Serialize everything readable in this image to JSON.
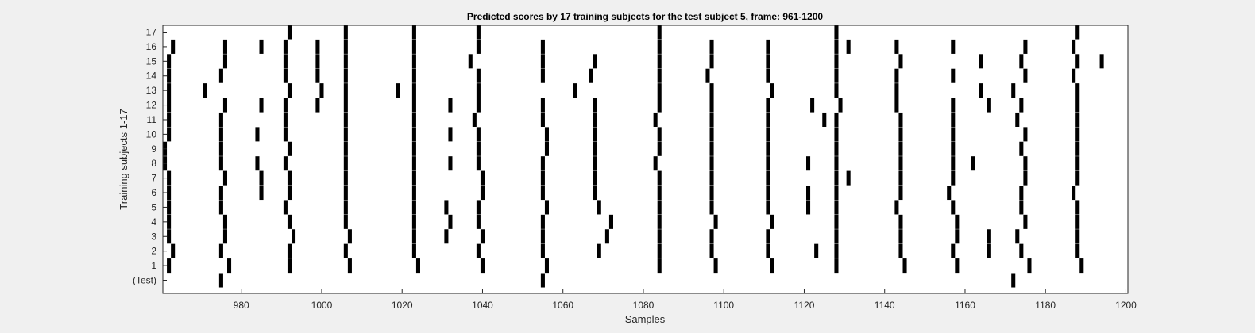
{
  "colors": {
    "figure_bg": "#f0f0f0",
    "axes_bg": "#ffffff",
    "axes_edge": "#262626",
    "mark": "#000000"
  },
  "chart_data": {
    "type": "heatmap",
    "title": "Predicted scores by 17 training subjects for the test subject 5, frame: 961-1200",
    "xlabel": "Samples",
    "ylabel": "Training subjects 1-17",
    "xlim": [
      961,
      1200
    ],
    "xticks": [
      980,
      1000,
      1020,
      1040,
      1060,
      1080,
      1100,
      1120,
      1140,
      1160,
      1180,
      1200
    ],
    "rows": [
      {
        "label": "(Test)",
        "x": [
          975,
          1055,
          1172
        ]
      },
      {
        "label": "1",
        "x": [
          962,
          977,
          992,
          1007,
          1024,
          1040,
          1056,
          1084,
          1098,
          1112,
          1128,
          1145,
          1158,
          1176,
          1189
        ]
      },
      {
        "label": "2",
        "x": [
          963,
          975,
          992,
          1006,
          1023,
          1039,
          1055,
          1069,
          1084,
          1097,
          1111,
          1123,
          1128,
          1144,
          1157,
          1166,
          1174,
          1188
        ]
      },
      {
        "label": "3",
        "x": [
          962,
          976,
          993,
          1007,
          1023,
          1031,
          1040,
          1055,
          1071,
          1084,
          1097,
          1111,
          1128,
          1144,
          1158,
          1166,
          1173,
          1188
        ]
      },
      {
        "label": "4",
        "x": [
          962,
          976,
          992,
          1006,
          1023,
          1032,
          1039,
          1055,
          1072,
          1084,
          1098,
          1112,
          1128,
          1144,
          1158,
          1175,
          1188
        ]
      },
      {
        "label": "5",
        "x": [
          962,
          975,
          991,
          1006,
          1023,
          1031,
          1039,
          1056,
          1069,
          1084,
          1097,
          1111,
          1121,
          1128,
          1143,
          1157,
          1174,
          1188
        ]
      },
      {
        "label": "6",
        "x": [
          962,
          975,
          985,
          992,
          1006,
          1023,
          1040,
          1055,
          1068,
          1084,
          1097,
          1111,
          1121,
          1128,
          1144,
          1156,
          1174,
          1187
        ]
      },
      {
        "label": "7",
        "x": [
          962,
          976,
          985,
          992,
          1006,
          1023,
          1040,
          1055,
          1068,
          1084,
          1097,
          1111,
          1128,
          1131,
          1144,
          1157,
          1175,
          1188
        ]
      },
      {
        "label": "8",
        "x": [
          961,
          975,
          984,
          991,
          1006,
          1023,
          1032,
          1039,
          1055,
          1068,
          1083,
          1097,
          1111,
          1121,
          1128,
          1144,
          1157,
          1162,
          1175,
          1188
        ]
      },
      {
        "label": "9",
        "x": [
          961,
          975,
          992,
          1006,
          1023,
          1039,
          1056,
          1068,
          1084,
          1097,
          1111,
          1128,
          1144,
          1157,
          1174,
          1188
        ]
      },
      {
        "label": "10",
        "x": [
          962,
          975,
          984,
          991,
          1006,
          1023,
          1032,
          1039,
          1056,
          1068,
          1084,
          1097,
          1111,
          1128,
          1144,
          1157,
          1175,
          1188
        ]
      },
      {
        "label": "11",
        "x": [
          962,
          975,
          991,
          1006,
          1023,
          1038,
          1055,
          1068,
          1083,
          1097,
          1111,
          1125,
          1128,
          1144,
          1157,
          1173,
          1188
        ]
      },
      {
        "label": "12",
        "x": [
          962,
          976,
          985,
          991,
          999,
          1006,
          1023,
          1032,
          1039,
          1055,
          1068,
          1084,
          1097,
          1111,
          1122,
          1129,
          1143,
          1157,
          1166,
          1174,
          1188
        ]
      },
      {
        "label": "13",
        "x": [
          962,
          971,
          992,
          1000,
          1006,
          1019,
          1023,
          1039,
          1063,
          1084,
          1097,
          1112,
          1128,
          1143,
          1164,
          1172,
          1188
        ]
      },
      {
        "label": "14",
        "x": [
          962,
          975,
          991,
          999,
          1006,
          1023,
          1039,
          1055,
          1067,
          1084,
          1096,
          1111,
          1128,
          1143,
          1157,
          1175,
          1187
        ]
      },
      {
        "label": "15",
        "x": [
          962,
          976,
          991,
          999,
          1006,
          1023,
          1037,
          1055,
          1068,
          1084,
          1097,
          1111,
          1128,
          1144,
          1164,
          1174,
          1188,
          1194
        ]
      },
      {
        "label": "16",
        "x": [
          963,
          976,
          985,
          991,
          999,
          1006,
          1023,
          1039,
          1055,
          1084,
          1097,
          1111,
          1128,
          1131,
          1143,
          1157,
          1175,
          1187
        ]
      },
      {
        "label": "17",
        "x": [
          992,
          1006,
          1023,
          1039,
          1084,
          1128,
          1188
        ]
      }
    ],
    "grid": false,
    "legend": "none"
  }
}
